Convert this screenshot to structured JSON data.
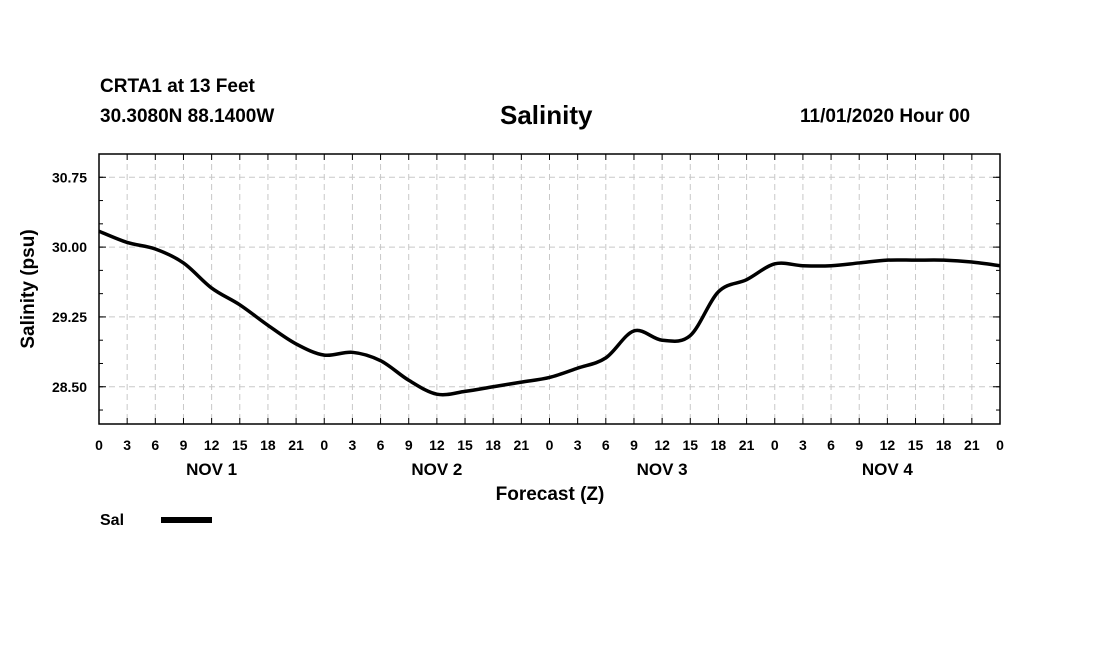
{
  "header": {
    "station": "CRTA1 at 13 Feet",
    "coords": "30.3080N 88.1400W",
    "title": "Salinity",
    "datetime": "11/01/2020 Hour 00"
  },
  "chart_data": {
    "type": "line",
    "title": "Salinity",
    "xlabel": "Forecast (Z)",
    "ylabel": "Salinity (psu)",
    "xlim": [
      0,
      96
    ],
    "ylim": [
      28.1,
      31.0
    ],
    "yticks": [
      28.5,
      29.25,
      30.0,
      30.75
    ],
    "ytick_labels": [
      "28.50",
      "29.25",
      "30.00",
      "30.75"
    ],
    "xtick_hours": [
      0,
      3,
      6,
      9,
      12,
      15,
      18,
      21,
      24,
      27,
      30,
      33,
      36,
      39,
      42,
      45,
      48,
      51,
      54,
      57,
      60,
      63,
      66,
      69,
      72,
      75,
      78,
      81,
      84,
      87,
      90,
      93,
      96
    ],
    "xtick_labels": [
      "0",
      "3",
      "6",
      "9",
      "12",
      "15",
      "18",
      "21",
      "0",
      "3",
      "6",
      "9",
      "12",
      "15",
      "18",
      "21",
      "0",
      "3",
      "6",
      "9",
      "12",
      "15",
      "18",
      "21",
      "0",
      "3",
      "6",
      "9",
      "12",
      "15",
      "18",
      "21",
      "0"
    ],
    "day_labels": [
      {
        "label": "NOV 1",
        "hour": 12
      },
      {
        "label": "NOV 2",
        "hour": 36
      },
      {
        "label": "NOV 3",
        "hour": 60
      },
      {
        "label": "NOV 4",
        "hour": 84
      }
    ],
    "grid": true,
    "legend_position": "bottom-left",
    "series": [
      {
        "name": "Sal",
        "x": [
          0,
          3,
          6,
          9,
          12,
          15,
          18,
          21,
          24,
          27,
          30,
          33,
          36,
          39,
          42,
          45,
          48,
          51,
          54,
          57,
          60,
          63,
          66,
          69,
          72,
          75,
          78,
          81,
          84,
          87,
          90,
          93,
          96
        ],
        "values": [
          30.17,
          30.05,
          29.98,
          29.83,
          29.56,
          29.38,
          29.16,
          28.96,
          28.84,
          28.87,
          28.78,
          28.57,
          28.42,
          28.45,
          28.5,
          28.55,
          28.6,
          28.7,
          28.81,
          29.1,
          29.0,
          29.05,
          29.52,
          29.65,
          29.82,
          29.8,
          29.8,
          29.83,
          29.86,
          29.86,
          29.86,
          29.84,
          29.8
        ]
      }
    ]
  },
  "legend": {
    "label": "Sal"
  }
}
